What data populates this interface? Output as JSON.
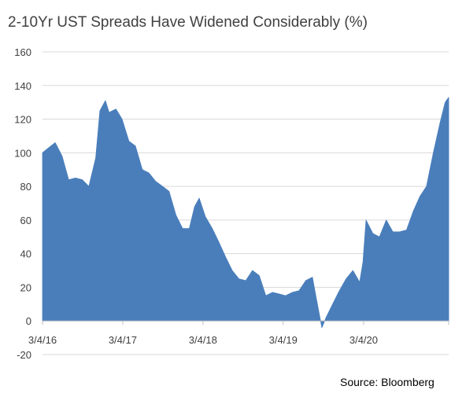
{
  "chart_data": {
    "type": "area",
    "title": "2-10Yr UST Spreads Have Widened Considerably (%)",
    "source": "Source: Bloomberg",
    "xlabel": "",
    "ylabel": "",
    "ylim": [
      -20,
      160
    ],
    "yticks": [
      "-20",
      "0",
      "20",
      "40",
      "60",
      "80",
      "100",
      "120",
      "140",
      "160"
    ],
    "xticks": [
      "3/4/16",
      "3/4/17",
      "3/4/18",
      "3/4/19",
      "3/4/20"
    ],
    "xlim": [
      "2016-03-04",
      "2021-03-26"
    ],
    "grid": true,
    "legend": "none",
    "series": [
      {
        "color": "#4a7ebb",
        "points": [
          [
            "2016-03-04",
            100
          ],
          [
            "2016-04-01",
            103
          ],
          [
            "2016-05-01",
            106
          ],
          [
            "2016-06-01",
            98
          ],
          [
            "2016-07-01",
            84
          ],
          [
            "2016-08-01",
            85
          ],
          [
            "2016-09-01",
            84
          ],
          [
            "2016-10-01",
            80
          ],
          [
            "2016-11-01",
            97
          ],
          [
            "2016-11-20",
            125
          ],
          [
            "2016-12-15",
            131
          ],
          [
            "2017-01-01",
            124
          ],
          [
            "2017-02-01",
            126
          ],
          [
            "2017-03-01",
            120
          ],
          [
            "2017-04-01",
            107
          ],
          [
            "2017-05-01",
            104
          ],
          [
            "2017-06-01",
            90
          ],
          [
            "2017-07-01",
            88
          ],
          [
            "2017-08-01",
            83
          ],
          [
            "2017-09-01",
            80
          ],
          [
            "2017-10-01",
            77
          ],
          [
            "2017-11-01",
            63
          ],
          [
            "2017-12-01",
            55
          ],
          [
            "2018-01-01",
            55
          ],
          [
            "2018-01-25",
            68
          ],
          [
            "2018-02-15",
            73
          ],
          [
            "2018-03-15",
            62
          ],
          [
            "2018-04-15",
            55
          ],
          [
            "2018-05-15",
            47
          ],
          [
            "2018-06-15",
            38
          ],
          [
            "2018-07-15",
            30
          ],
          [
            "2018-08-15",
            25
          ],
          [
            "2018-09-15",
            24
          ],
          [
            "2018-10-15",
            30
          ],
          [
            "2018-11-15",
            27
          ],
          [
            "2018-12-15",
            15
          ],
          [
            "2019-01-15",
            17
          ],
          [
            "2019-02-15",
            16
          ],
          [
            "2019-03-15",
            15
          ],
          [
            "2019-04-15",
            17
          ],
          [
            "2019-05-15",
            18
          ],
          [
            "2019-06-15",
            24
          ],
          [
            "2019-07-15",
            26
          ],
          [
            "2019-08-01",
            14
          ],
          [
            "2019-08-27",
            -4
          ],
          [
            "2019-09-15",
            2
          ],
          [
            "2019-10-15",
            10
          ],
          [
            "2019-11-15",
            18
          ],
          [
            "2019-12-15",
            25
          ],
          [
            "2020-01-15",
            30
          ],
          [
            "2020-02-15",
            23
          ],
          [
            "2020-03-01",
            35
          ],
          [
            "2020-03-15",
            60
          ],
          [
            "2020-04-15",
            52
          ],
          [
            "2020-05-15",
            50
          ],
          [
            "2020-06-15",
            60
          ],
          [
            "2020-07-15",
            53
          ],
          [
            "2020-08-15",
            53
          ],
          [
            "2020-09-15",
            54
          ],
          [
            "2020-10-15",
            65
          ],
          [
            "2020-11-15",
            74
          ],
          [
            "2020-12-15",
            80
          ],
          [
            "2021-01-15",
            100
          ],
          [
            "2021-02-15",
            118
          ],
          [
            "2021-03-10",
            130
          ],
          [
            "2021-03-26",
            133
          ]
        ]
      }
    ]
  }
}
